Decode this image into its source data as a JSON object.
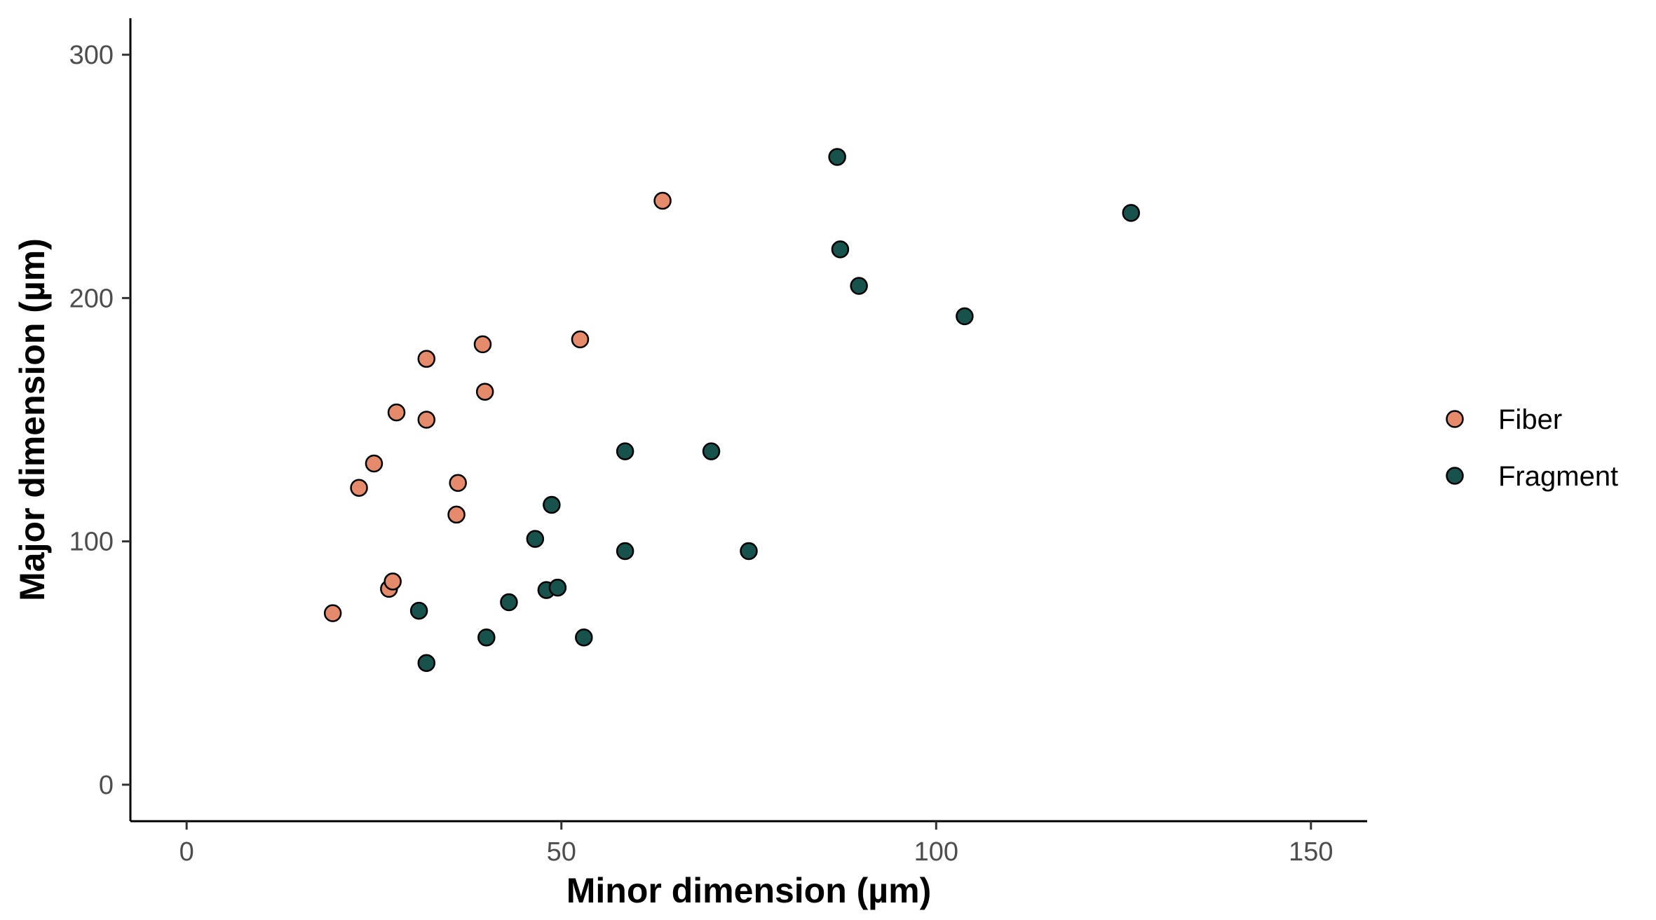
{
  "chart_data": {
    "type": "scatter",
    "title": "",
    "xlabel": "Minor dimension (µm)",
    "ylabel": "Major dimension (µm)",
    "xlim": [
      -7.5,
      157.5
    ],
    "ylim": [
      -15,
      315
    ],
    "x_ticks": [
      0,
      50,
      100,
      150
    ],
    "y_ticks": [
      0,
      100,
      200,
      300
    ],
    "grid": false,
    "legend_position": "right",
    "series": [
      {
        "name": "Fiber",
        "color": "#E58A6A",
        "points": [
          [
            19.5,
            70.5
          ],
          [
            23,
            122
          ],
          [
            25,
            132
          ],
          [
            27,
            80.5
          ],
          [
            27.5,
            83.5
          ],
          [
            28,
            153
          ],
          [
            32,
            175
          ],
          [
            32,
            150
          ],
          [
            36,
            111
          ],
          [
            36.2,
            124
          ],
          [
            39.5,
            181
          ],
          [
            39.8,
            161.5
          ],
          [
            52.5,
            183
          ],
          [
            63.5,
            240
          ]
        ]
      },
      {
        "name": "Fragment",
        "color": "#17524C",
        "points": [
          [
            31,
            71.5
          ],
          [
            32,
            50
          ],
          [
            40,
            60.5
          ],
          [
            43,
            75
          ],
          [
            46.5,
            101
          ],
          [
            48,
            80
          ],
          [
            48.7,
            115
          ],
          [
            49.5,
            81
          ],
          [
            53,
            60.5
          ],
          [
            58.5,
            137
          ],
          [
            58.5,
            96
          ],
          [
            70,
            137
          ],
          [
            75,
            96
          ],
          [
            86.8,
            258
          ],
          [
            87.2,
            220
          ],
          [
            89.7,
            205
          ],
          [
            103.8,
            192.5
          ],
          [
            126,
            235
          ]
        ]
      }
    ]
  }
}
